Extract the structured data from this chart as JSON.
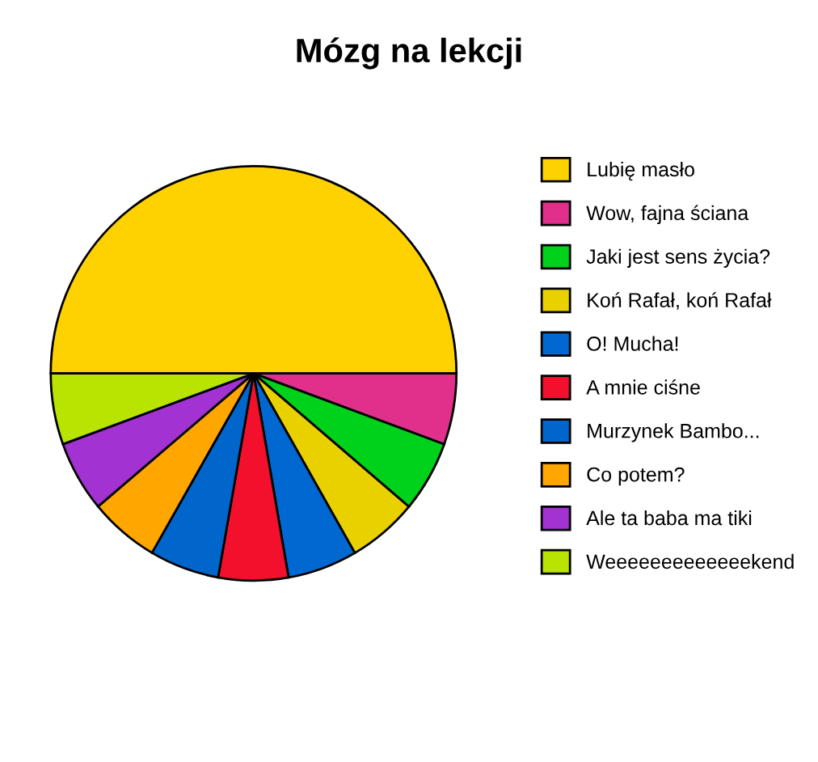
{
  "chart_data": {
    "type": "pie",
    "title": "Mózg na lekcji",
    "categories": [
      "Lubię masło",
      "Wow, fajna ściana",
      "Jaki jest sens życia?",
      "Koń Rafał, koń Rafał",
      "O! Mucha!",
      "A mnie ciśne",
      "Murzynek Bambo...",
      "Co potem?",
      "Ale ta baba ma tiki",
      "Weeeeeeeeeeeeekend"
    ],
    "values": [
      50,
      5.56,
      5.56,
      5.56,
      5.56,
      5.56,
      5.55,
      5.55,
      5.55,
      5.55
    ],
    "colors": [
      "#fed201",
      "#e0308c",
      "#00d21c",
      "#e9d100",
      "#0068d0",
      "#f2102c",
      "#0066cc",
      "#ffa600",
      "#a232d2",
      "#b9e300"
    ],
    "legend": "right"
  }
}
